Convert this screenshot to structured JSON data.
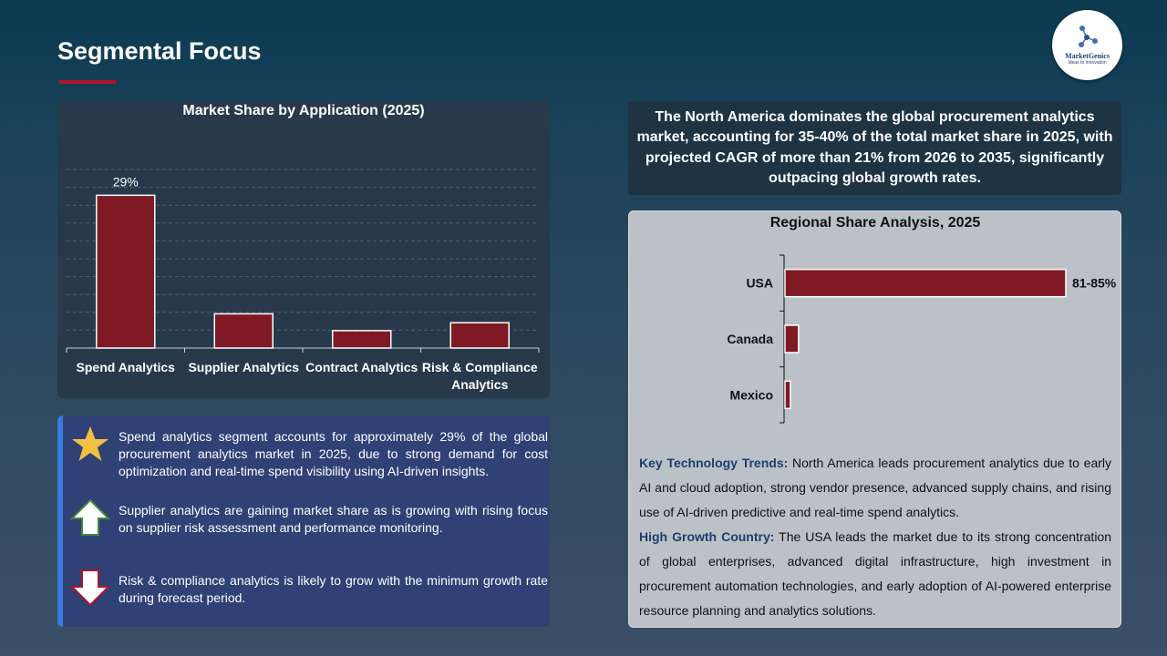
{
  "header": {
    "title": "Segmental Focus",
    "logo": {
      "brand": "MarketGenics",
      "tagline": "Ideas to Innovation",
      "icon": "molecule-icon"
    }
  },
  "application_chart": {
    "title": "Market Share by Application (2025)"
  },
  "regional_chart": {
    "title": "Regional Share Analysis, 2025"
  },
  "chart_data": [
    {
      "type": "bar",
      "title": "Market Share by Application (2025)",
      "categories": [
        "Spend Analytics",
        "Supplier Analytics",
        "Contract Analytics",
        "Risk & Compliance Analytics"
      ],
      "category_lines": [
        [
          "Spend Analytics"
        ],
        [
          "Supplier Analytics"
        ],
        [
          "Contract Analytics"
        ],
        [
          "Risk & Compliance",
          "Analytics"
        ]
      ],
      "values": [
        29,
        6.5,
        3.3,
        4.8
      ],
      "data_labels": [
        "29%",
        "",
        "",
        ""
      ],
      "ylim": [
        0,
        32
      ],
      "grid": true,
      "bar_color": "#7f1a25"
    },
    {
      "type": "bar",
      "orientation": "horizontal",
      "title": "Regional Share Analysis, 2025",
      "categories": [
        "USA",
        "Canada",
        "Mexico"
      ],
      "values": [
        83,
        4,
        1.6
      ],
      "data_labels": [
        "81-85%",
        "",
        ""
      ],
      "xlim": [
        0,
        83
      ],
      "bar_color": "#7f1a25"
    }
  ],
  "headline": "The North America dominates the global procurement analytics market, accounting for 35-40% of the total market share in 2025, with projected CAGR of more than 21% from 2026 to 2035, significantly outpacing global growth rates.",
  "insights": [
    {
      "icon": "star-icon",
      "text": "Spend analytics segment accounts for approximately 29% of the global procurement analytics market in 2025, due to strong demand for cost optimization and real-time spend visibility using AI-driven insights."
    },
    {
      "icon": "up-arrow-icon",
      "text": "Supplier analytics are gaining market share as is growing with rising focus on supplier risk assessment and performance monitoring."
    },
    {
      "icon": "down-arrow-icon",
      "text": "Risk & compliance analytics is likely to grow with the minimum growth rate during forecast period."
    }
  ],
  "notes": {
    "trends_label": "Key Technology Trends:",
    "trends_text": " North America leads procurement analytics due to early AI and cloud adoption, strong vendor presence, advanced supply chains, and rising use of AI-driven predictive and real-time spend analytics.",
    "growth_label": "High Growth Country:",
    "growth_text": " The USA leads the market due to its strong concentration of global enterprises, advanced digital infrastructure, high investment in procurement automation technologies, and early adoption of AI-powered enterprise resource planning and analytics solutions."
  },
  "colors": {
    "accent_red": "#b0142a",
    "bar": "#7f1a25",
    "insight_border": "#3a7be0",
    "star": "#f2c043"
  }
}
